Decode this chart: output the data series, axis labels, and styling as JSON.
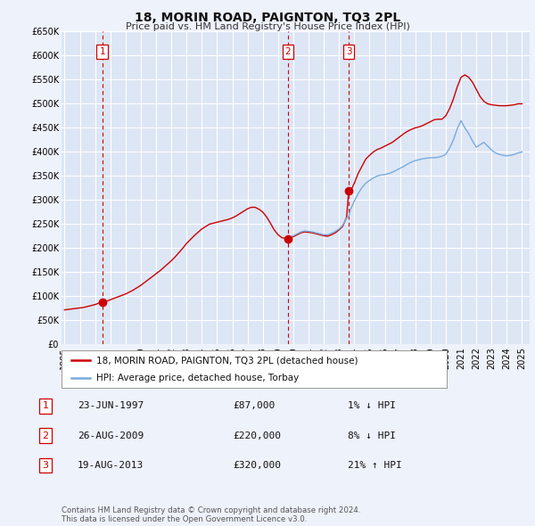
{
  "title": "18, MORIN ROAD, PAIGNTON, TQ3 2PL",
  "subtitle": "Price paid vs. HM Land Registry's House Price Index (HPI)",
  "bg_color": "#eef2fb",
  "plot_bg_color": "#dde6f5",
  "grid_color": "#ffffff",
  "red_line_color": "#cc0000",
  "blue_line_color": "#7aabdc",
  "marker_color": "#cc0000",
  "ylim": [
    0,
    650000
  ],
  "yticks": [
    0,
    50000,
    100000,
    150000,
    200000,
    250000,
    300000,
    350000,
    400000,
    450000,
    500000,
    550000,
    600000,
    650000
  ],
  "ytick_labels": [
    "£0",
    "£50K",
    "£100K",
    "£150K",
    "£200K",
    "£250K",
    "£300K",
    "£350K",
    "£400K",
    "£450K",
    "£500K",
    "£550K",
    "£600K",
    "£650K"
  ],
  "xlim_start": 1994.8,
  "xlim_end": 2025.5,
  "xtick_years": [
    1995,
    1996,
    1997,
    1998,
    1999,
    2000,
    2001,
    2002,
    2003,
    2004,
    2005,
    2006,
    2007,
    2008,
    2009,
    2010,
    2011,
    2012,
    2013,
    2014,
    2015,
    2016,
    2017,
    2018,
    2019,
    2020,
    2021,
    2022,
    2023,
    2024,
    2025
  ],
  "sale_dates": [
    1997.47,
    2009.65,
    2013.63
  ],
  "sale_prices": [
    87000,
    220000,
    320000
  ],
  "sale_labels": [
    "1",
    "2",
    "3"
  ],
  "legend_label_red": "18, MORIN ROAD, PAIGNTON, TQ3 2PL (detached house)",
  "legend_label_blue": "HPI: Average price, detached house, Torbay",
  "table_entries": [
    {
      "num": "1",
      "date": "23-JUN-1997",
      "price": "£87,000",
      "hpi": "1% ↓ HPI"
    },
    {
      "num": "2",
      "date": "26-AUG-2009",
      "price": "£220,000",
      "hpi": "8% ↓ HPI"
    },
    {
      "num": "3",
      "date": "19-AUG-2013",
      "price": "£320,000",
      "hpi": "21% ↑ HPI"
    }
  ],
  "footnote": "Contains HM Land Registry data © Crown copyright and database right 2024.\nThis data is licensed under the Open Government Licence v3.0.",
  "hpi_red_x": [
    1995.0,
    1995.25,
    1995.5,
    1995.75,
    1996.0,
    1996.25,
    1996.5,
    1996.75,
    1997.0,
    1997.25,
    1997.47,
    1997.75,
    1998.0,
    1998.25,
    1998.5,
    1998.75,
    1999.0,
    1999.25,
    1999.5,
    1999.75,
    2000.0,
    2000.25,
    2000.5,
    2000.75,
    2001.0,
    2001.25,
    2001.5,
    2001.75,
    2002.0,
    2002.25,
    2002.5,
    2002.75,
    2003.0,
    2003.25,
    2003.5,
    2003.75,
    2004.0,
    2004.25,
    2004.5,
    2004.75,
    2005.0,
    2005.25,
    2005.5,
    2005.75,
    2006.0,
    2006.25,
    2006.5,
    2006.75,
    2007.0,
    2007.25,
    2007.5,
    2007.75,
    2008.0,
    2008.25,
    2008.5,
    2008.75,
    2009.0,
    2009.25,
    2009.5,
    2009.65,
    2009.75,
    2010.0,
    2010.25,
    2010.5,
    2010.75,
    2011.0,
    2011.25,
    2011.5,
    2011.75,
    2012.0,
    2012.25,
    2012.5,
    2012.75,
    2013.0,
    2013.25,
    2013.5,
    2013.63,
    2013.75,
    2014.0,
    2014.25,
    2014.5,
    2014.75,
    2015.0,
    2015.25,
    2015.5,
    2015.75,
    2016.0,
    2016.25,
    2016.5,
    2016.75,
    2017.0,
    2017.25,
    2017.5,
    2017.75,
    2018.0,
    2018.25,
    2018.5,
    2018.75,
    2019.0,
    2019.25,
    2019.5,
    2019.75,
    2020.0,
    2020.25,
    2020.5,
    2020.75,
    2021.0,
    2021.25,
    2021.5,
    2021.75,
    2022.0,
    2022.25,
    2022.5,
    2022.75,
    2023.0,
    2023.25,
    2023.5,
    2023.75,
    2024.0,
    2024.25,
    2024.5,
    2024.75,
    2025.0
  ],
  "hpi_red_y": [
    72000,
    73000,
    74000,
    75000,
    76000,
    77000,
    79000,
    81000,
    83000,
    86000,
    87000,
    90000,
    93000,
    96000,
    99000,
    102000,
    105000,
    109000,
    113000,
    118000,
    123000,
    129000,
    135000,
    141000,
    147000,
    153000,
    160000,
    167000,
    174000,
    182000,
    191000,
    200000,
    210000,
    218000,
    226000,
    233000,
    240000,
    245000,
    250000,
    252000,
    254000,
    256000,
    258000,
    260000,
    263000,
    267000,
    272000,
    277000,
    282000,
    285000,
    285000,
    281000,
    275000,
    265000,
    252000,
    238000,
    228000,
    222000,
    220000,
    220000,
    221000,
    224000,
    228000,
    232000,
    234000,
    233000,
    232000,
    230000,
    228000,
    226000,
    225000,
    228000,
    232000,
    238000,
    246000,
    265000,
    320000,
    318000,
    335000,
    355000,
    370000,
    385000,
    393000,
    400000,
    405000,
    408000,
    412000,
    416000,
    420000,
    426000,
    432000,
    438000,
    443000,
    447000,
    450000,
    452000,
    455000,
    459000,
    463000,
    467000,
    468000,
    468000,
    475000,
    490000,
    510000,
    535000,
    555000,
    560000,
    555000,
    545000,
    530000,
    515000,
    505000,
    500000,
    498000,
    497000,
    496000,
    496000,
    496000,
    497000,
    498000,
    500000,
    500000
  ],
  "hpi_blue_x": [
    2009.65,
    2009.75,
    2010.0,
    2010.25,
    2010.5,
    2010.75,
    2011.0,
    2011.25,
    2011.5,
    2011.75,
    2012.0,
    2012.25,
    2012.5,
    2012.75,
    2013.0,
    2013.25,
    2013.5,
    2013.63,
    2013.75,
    2014.0,
    2014.25,
    2014.5,
    2014.75,
    2015.0,
    2015.25,
    2015.5,
    2015.75,
    2016.0,
    2016.25,
    2016.5,
    2016.75,
    2017.0,
    2017.25,
    2017.5,
    2017.75,
    2018.0,
    2018.25,
    2018.5,
    2018.75,
    2019.0,
    2019.25,
    2019.5,
    2019.75,
    2020.0,
    2020.25,
    2020.5,
    2020.75,
    2021.0,
    2021.25,
    2021.5,
    2021.75,
    2022.0,
    2022.25,
    2022.5,
    2022.75,
    2023.0,
    2023.25,
    2023.5,
    2023.75,
    2024.0,
    2024.25,
    2024.5,
    2024.75,
    2025.0
  ],
  "hpi_blue_y": [
    220000,
    222000,
    226000,
    230000,
    234000,
    236000,
    235000,
    234000,
    232000,
    230000,
    228000,
    228000,
    231000,
    235000,
    240000,
    248000,
    263000,
    265000,
    280000,
    298000,
    313000,
    326000,
    335000,
    341000,
    346000,
    350000,
    352000,
    353000,
    355000,
    358000,
    362000,
    366000,
    370000,
    375000,
    379000,
    382000,
    384000,
    386000,
    387000,
    388000,
    388000,
    389000,
    391000,
    395000,
    408000,
    425000,
    448000,
    465000,
    450000,
    438000,
    423000,
    410000,
    415000,
    420000,
    412000,
    404000,
    398000,
    395000,
    393000,
    392000,
    393000,
    395000,
    398000,
    400000
  ]
}
